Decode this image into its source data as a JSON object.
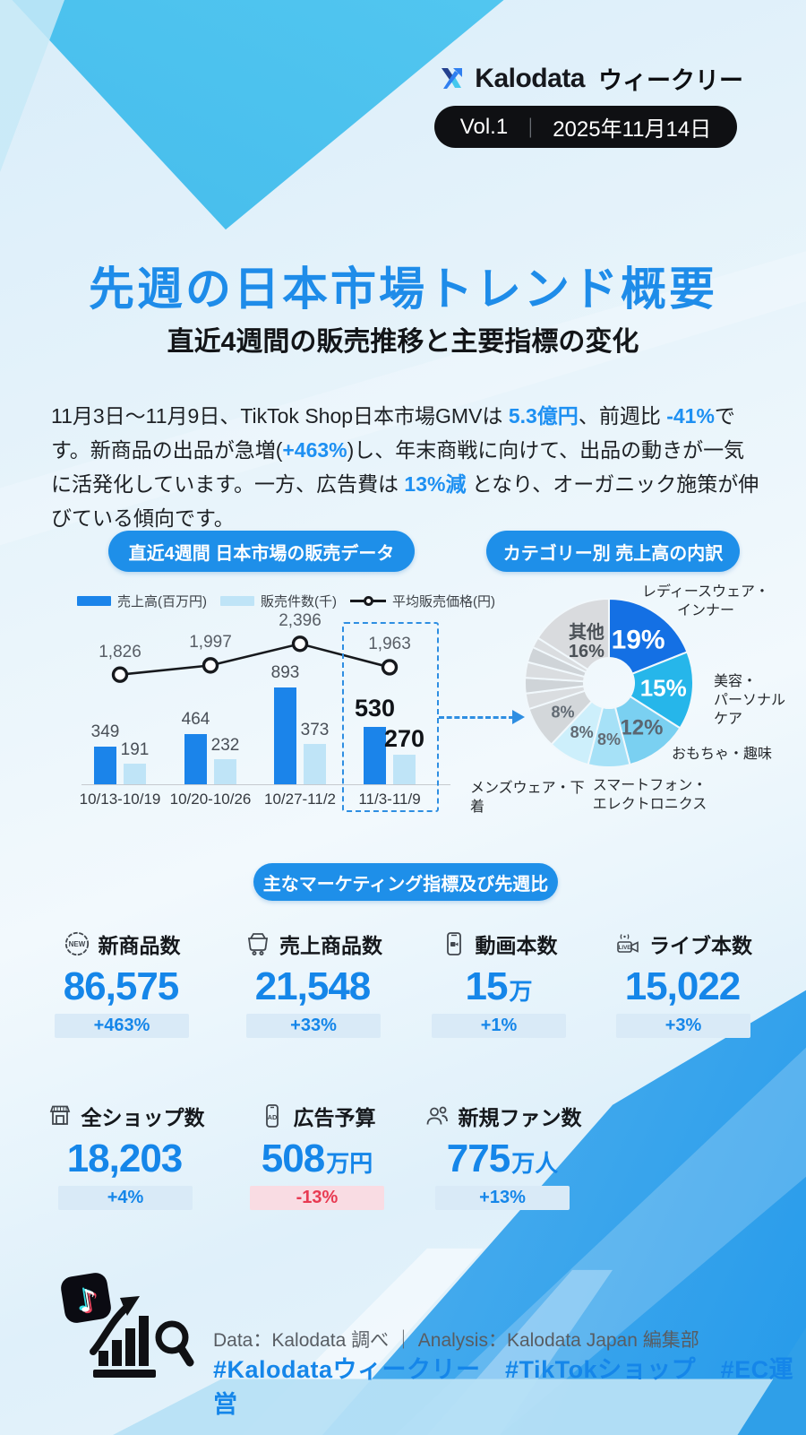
{
  "header": {
    "brand": "Kalodata",
    "brand_suffix": "ウィークリー",
    "badge": {
      "vol": "Vol.1",
      "divider": "｜",
      "date": "2025年11月14日"
    }
  },
  "hero": {
    "title": "先週の日本市場トレンド概要",
    "subtitle": "直近4週間の販売推移と主要指標の変化"
  },
  "intro": {
    "segments": [
      {
        "text": "11月3日～11月9日、TikTok Shop日本市場GMVは ",
        "hl": false
      },
      {
        "text": "5.3億円",
        "hl": true
      },
      {
        "text": "、前週比 ",
        "hl": false
      },
      {
        "text": "-41%",
        "hl": true
      },
      {
        "text": "です。新商品の出品が急増(",
        "hl": false
      },
      {
        "text": "+463%",
        "hl": true
      },
      {
        "text": ")し、年末商戦に向けて、出品の動きが一気に活発化しています。一方、広告費は ",
        "hl": false
      },
      {
        "text": "13%減",
        "hl": true
      },
      {
        "text": " となり、オーガニック施策が伸びている傾向です。",
        "hl": false
      }
    ]
  },
  "section_headers": {
    "sales": "直近4週間 日本市場の販売データ",
    "category": "カテゴリー別 売上高の内訳",
    "metrics": "主なマーケティング指標及び先週比"
  },
  "chart_data": [
    {
      "type": "bar",
      "title": "直近4週間 日本市場の販売データ",
      "categories": [
        "10/13-10/19",
        "10/20-10/26",
        "10/27-11/2",
        "11/3-11/9"
      ],
      "series": [
        {
          "name": "売上高(百万円)",
          "type": "bar",
          "color": "#1b84ea",
          "values": [
            349,
            464,
            893,
            530
          ]
        },
        {
          "name": "販売件数(千)",
          "type": "bar",
          "color": "#bfe4f7",
          "values": [
            191,
            232,
            373,
            270
          ]
        },
        {
          "name": "平均販売価格(円)",
          "type": "line",
          "color": "#17191d",
          "values": [
            1826,
            1997,
            2396,
            1963
          ],
          "labels": [
            "1,826",
            "1,997",
            "2,396",
            "1,963"
          ]
        }
      ],
      "highlight_category": "11/3-11/9",
      "legend_position": "top",
      "grid": false
    },
    {
      "type": "pie",
      "title": "カテゴリー別 売上高の内訳",
      "segments": [
        {
          "label": "レディースウェア・\nインナー",
          "value": 19,
          "color": "#1470e4",
          "pct": "19%",
          "pct_color": "#ffffff",
          "pct_size": 30,
          "pct_bold": true,
          "pct_r": 58
        },
        {
          "label": "美容・\nパーソナル\nケア",
          "value": 15,
          "color": "#26b6ea",
          "pct": "15%",
          "pct_color": "#ffffff",
          "pct_size": 26,
          "pct_bold": true,
          "pct_r": 61
        },
        {
          "label": "おもちゃ・趣味",
          "value": 12,
          "color": "#7ad0f1",
          "pct": "12%",
          "pct_color": "#5a6671",
          "pct_size": 24,
          "pct_bold": false,
          "pct_r": 62
        },
        {
          "label": "スマートフォン・\nエレクトロニクス",
          "value": 8,
          "color": "#a6e1f7",
          "pct": "8%",
          "pct_color": "#626b74",
          "pct_size": 18,
          "pct_bold": false,
          "pct_r": 63
        },
        {
          "label": "メンズウェア・下着",
          "value": 8,
          "color": "#cdeffb",
          "pct": "8%",
          "pct_color": "#626b74",
          "pct_size": 18,
          "pct_bold": false,
          "pct_r": 63
        },
        {
          "label": "",
          "value": 8,
          "color": "#d3d7da",
          "pct": "8%",
          "pct_color": "#626b74",
          "pct_size": 18,
          "pct_bold": false,
          "pct_r": 61
        },
        {
          "label": "",
          "value": 3,
          "color": "#dadde0"
        },
        {
          "label": "",
          "value": 3,
          "color": "#cfd4d8"
        },
        {
          "label": "",
          "value": 3,
          "color": "#dadde0"
        },
        {
          "label": "",
          "value": 3,
          "color": "#cfd4d8"
        },
        {
          "label": "",
          "value": 2,
          "color": "#dadde0"
        },
        {
          "label": "其他",
          "value": 16,
          "color": "#d9dbde",
          "pct": "其他|16%",
          "pct_color": "#4b5157",
          "pct_size": 20,
          "pct_bold": false,
          "pct_r": 52
        }
      ]
    }
  ],
  "metrics": {
    "items": [
      {
        "label": "新商品数",
        "icon": "new-badge-icon",
        "value": "86,575",
        "suffix": "",
        "change": "+463%",
        "negative": false
      },
      {
        "label": "売上商品数",
        "icon": "cart-icon",
        "value": "21,548",
        "suffix": "",
        "change": "+33%",
        "negative": false
      },
      {
        "label": "動画本数",
        "icon": "phone-video-icon",
        "value": "15",
        "suffix": "万",
        "change": "+1%",
        "negative": false
      },
      {
        "label": "ライブ本数",
        "icon": "live-camera-icon",
        "value": "15,022",
        "suffix": "",
        "change": "+3%",
        "negative": false
      },
      {
        "label": "全ショップ数",
        "icon": "shop-icon",
        "value": "18,203",
        "suffix": "",
        "change": "+4%",
        "negative": false
      },
      {
        "label": "広告予算",
        "icon": "phone-ad-icon",
        "value": "508",
        "suffix": "万円",
        "change": "-13%",
        "negative": true
      },
      {
        "label": "新規ファン数",
        "icon": "people-icon",
        "value": "775",
        "suffix": "万人",
        "change": "+13%",
        "negative": false
      }
    ]
  },
  "footer": {
    "credit": "Data：Kalodata 調べ ｜ Analysis：Kalodata Japan 編集部",
    "hashtags": "#Kalodataウィークリー　#TikTokショップ　#EC運営"
  },
  "colors": {
    "accent_blue": "#1e8ce9",
    "number_blue": "#1586e9",
    "negative_red": "#e83a52",
    "bar_dark": "#1b84ea",
    "bar_light": "#bfe4f7",
    "badge_black": "#0f1013",
    "cyan_bg": "#3cb3e8"
  }
}
